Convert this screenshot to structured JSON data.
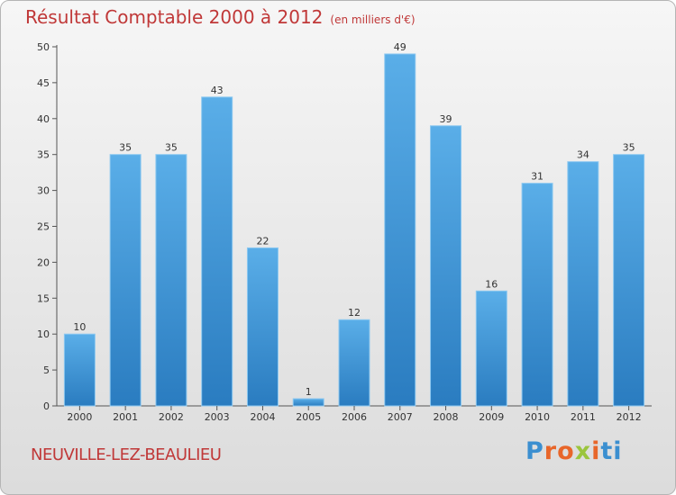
{
  "header": {
    "title": "Résultat Comptable 2000 à 2012",
    "subtitle": "(en milliers d'€)"
  },
  "footer": {
    "place_name": "NEUVILLE-LEZ-BEAULIEU",
    "logo": {
      "text": "Proxiti",
      "letter_colors": [
        "#3b8fd0",
        "#e8662a",
        "#e8662a",
        "#9bc53d",
        "#e8662a",
        "#3b8fd0",
        "#3b8fd0"
      ]
    }
  },
  "colors": {
    "bar": "#3a92d8",
    "title": "#c03838"
  },
  "chart_data": {
    "type": "bar",
    "title": "Résultat Comptable 2000 à 2012",
    "subtitle": "(en milliers d'€)",
    "xlabel": "",
    "ylabel": "",
    "categories": [
      "2000",
      "2001",
      "2002",
      "2003",
      "2004",
      "2005",
      "2006",
      "2007",
      "2008",
      "2009",
      "2010",
      "2011",
      "2012"
    ],
    "values": [
      10,
      35,
      35,
      43,
      22,
      1,
      12,
      49,
      39,
      16,
      31,
      34,
      35
    ],
    "ylim": [
      0,
      50
    ],
    "yticks": [
      0,
      5,
      10,
      15,
      20,
      25,
      30,
      35,
      40,
      45,
      50
    ],
    "grid": false,
    "legend": "none"
  }
}
